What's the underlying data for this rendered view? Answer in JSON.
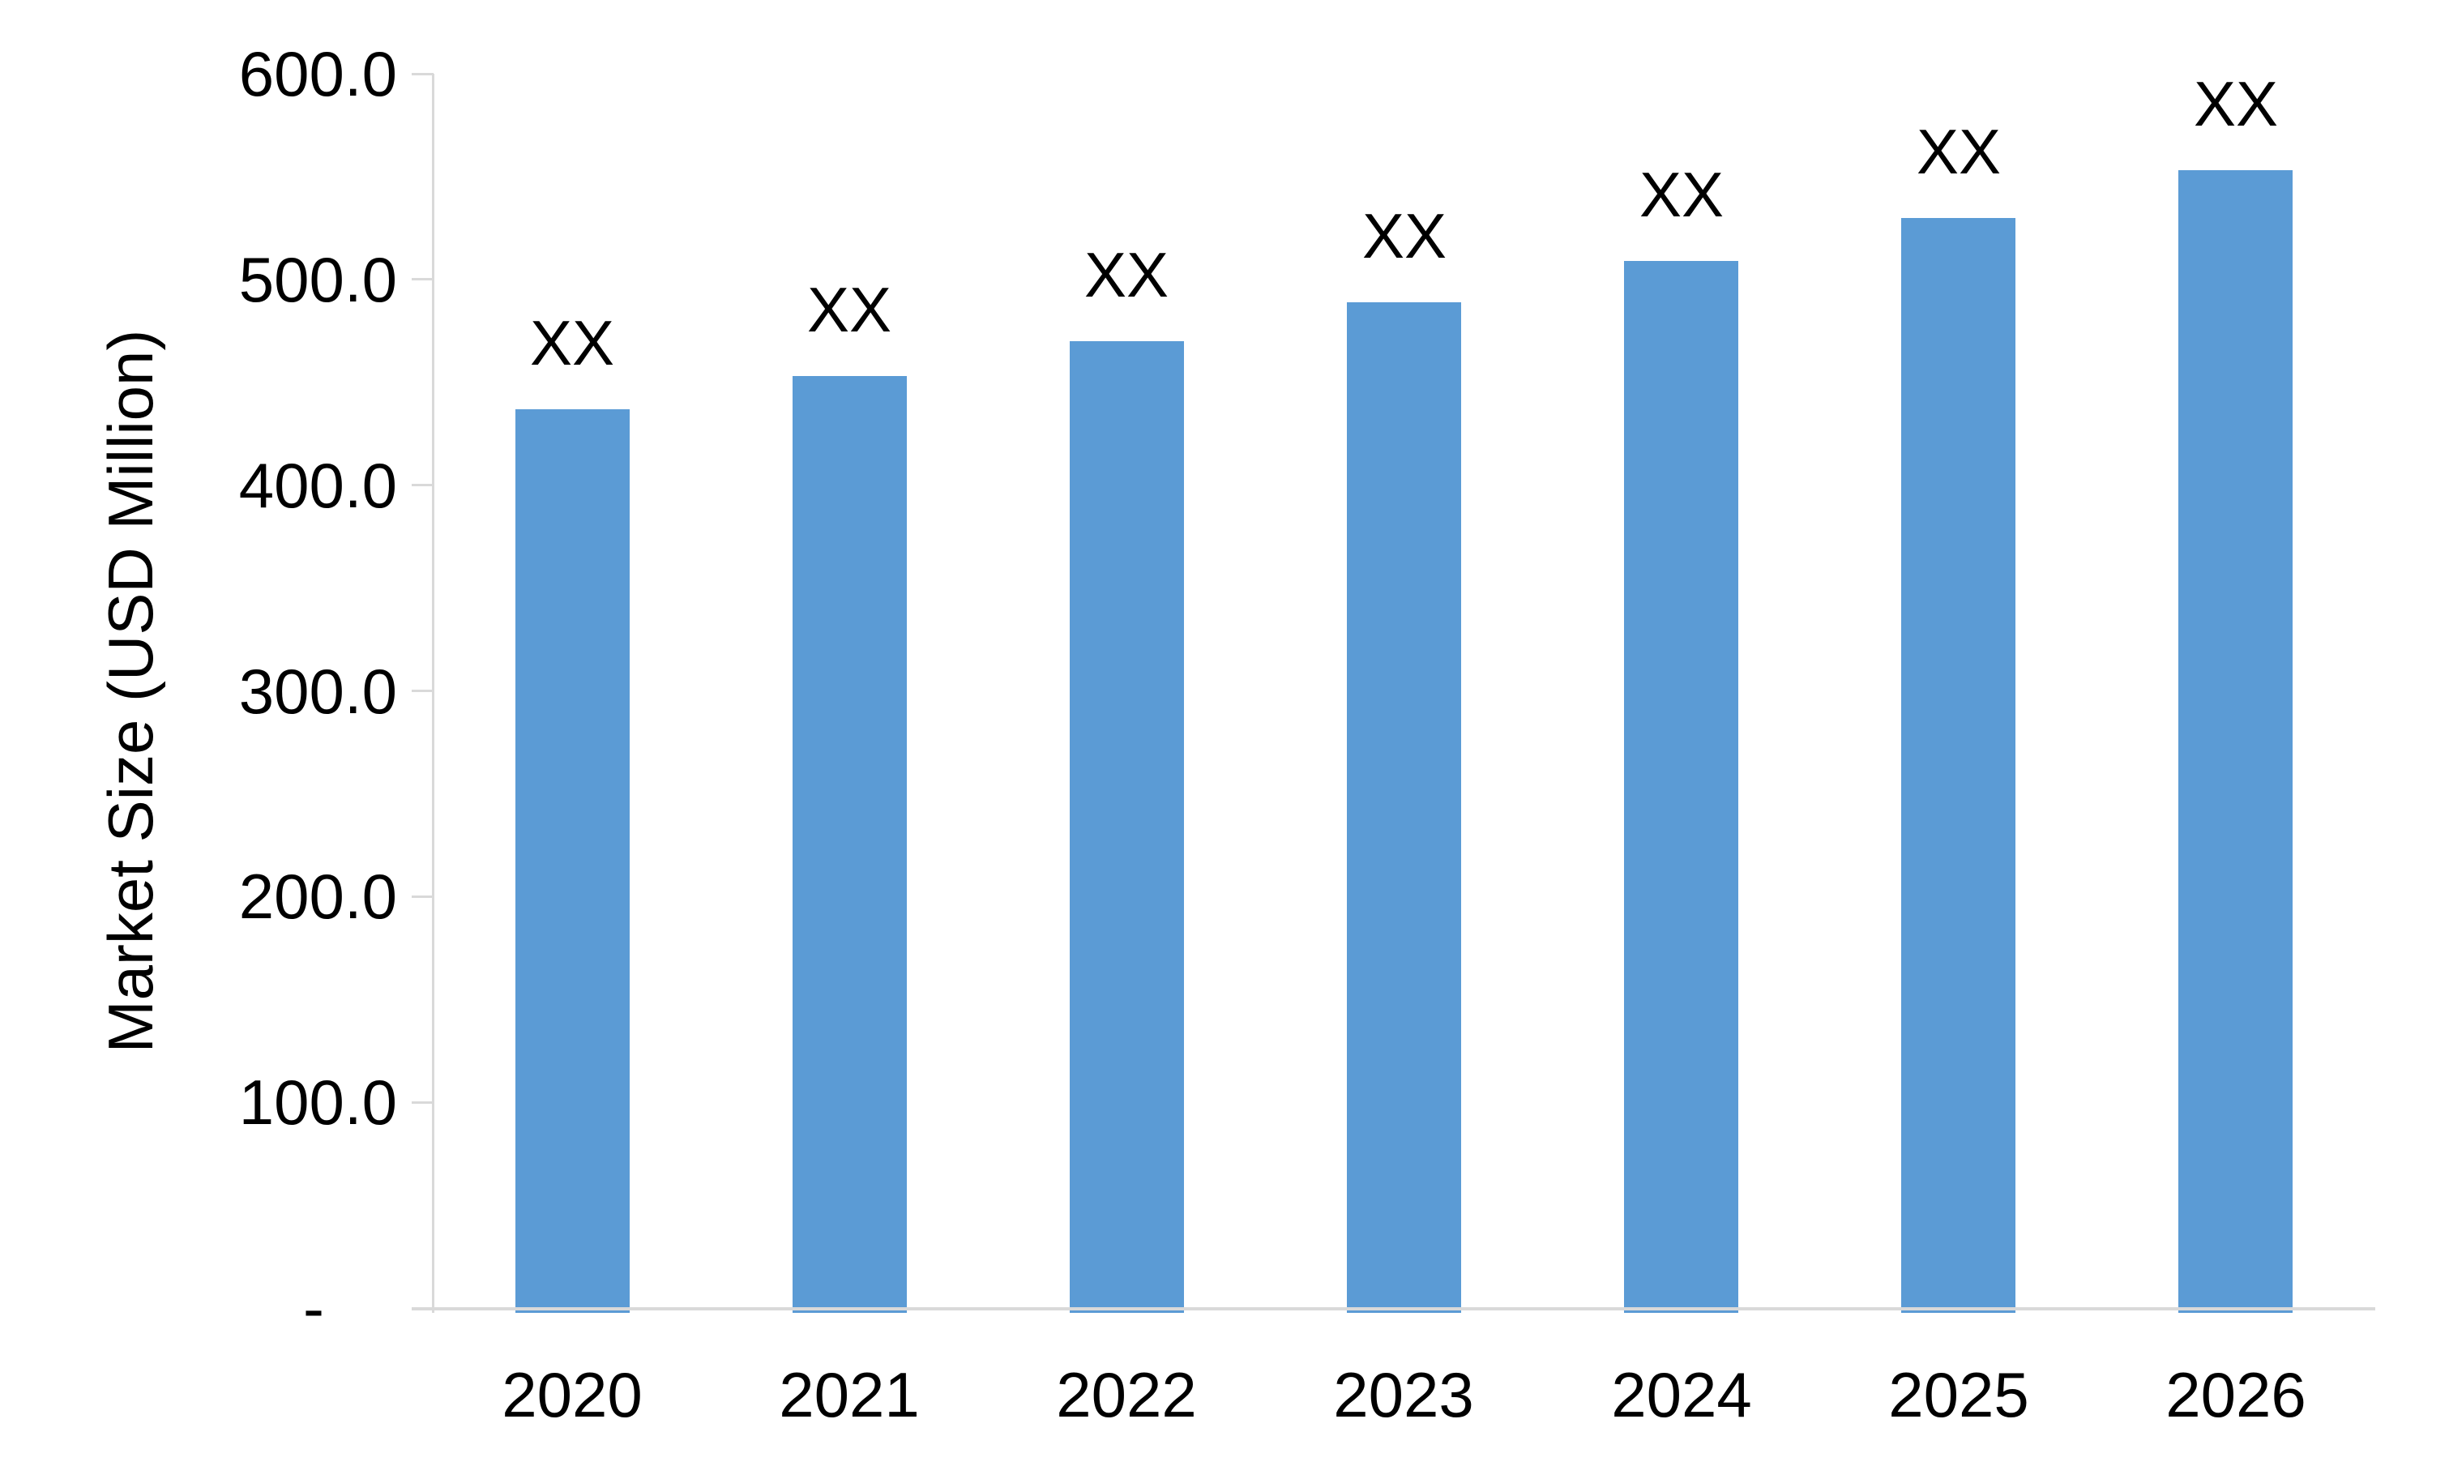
{
  "chart_data": {
    "type": "bar",
    "title": "",
    "ylabel": "Market Size (USD Million)",
    "xlabel": "",
    "categories": [
      "2020",
      "2021",
      "2022",
      "2023",
      "2024",
      "2025",
      "2026"
    ],
    "series": [
      {
        "name": "Market Size",
        "values": [
          437,
          453,
          470,
          489,
          509,
          530,
          553
        ],
        "data_labels": [
          "XX",
          "XX",
          "XX",
          "XX",
          "XX",
          "XX",
          "XX"
        ]
      }
    ],
    "ylim": [
      0,
      600
    ],
    "ytick_interval": 100,
    "yticks": [
      {
        "label": "600.0",
        "value": 600
      },
      {
        "label": "500.0",
        "value": 500
      },
      {
        "label": "400.0",
        "value": 400
      },
      {
        "label": "300.0",
        "value": 300
      },
      {
        "label": "200.0",
        "value": 200
      },
      {
        "label": "100.0",
        "value": 100
      },
      {
        "label": "-",
        "value": 0
      }
    ],
    "grid": false,
    "legend_position": "none",
    "bar_color": "#5B9BD5",
    "axis_line_color": "#D9D9D9",
    "text_color": "#000000",
    "background_color": "#FFFFFF"
  }
}
